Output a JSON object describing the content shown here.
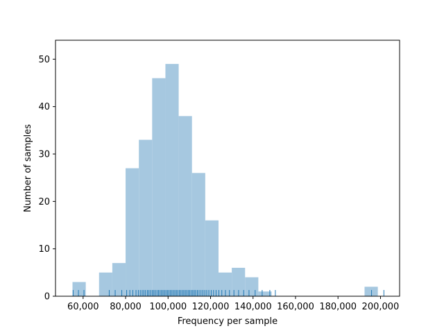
{
  "chart_data": {
    "type": "bar",
    "title": "",
    "xlabel": "Frequency per sample",
    "ylabel": "Number of samples",
    "xlim": [
      47000,
      209000
    ],
    "ylim": [
      0,
      54
    ],
    "xticks": [
      60000,
      80000,
      100000,
      120000,
      140000,
      160000,
      180000,
      200000
    ],
    "xtick_labels": [
      "60,000",
      "80,000",
      "100,000",
      "120,000",
      "140,000",
      "160,000",
      "180,000",
      "200,000"
    ],
    "yticks": [
      0,
      10,
      20,
      30,
      40,
      50
    ],
    "ytick_labels": [
      "0",
      "10",
      "20",
      "30",
      "40",
      "50"
    ],
    "grid": false,
    "legend": "none",
    "bin_width": 6250,
    "bins": [
      {
        "x0": 55000,
        "count": 3
      },
      {
        "x0": 61250,
        "count": 0
      },
      {
        "x0": 67500,
        "count": 5
      },
      {
        "x0": 73750,
        "count": 7
      },
      {
        "x0": 80000,
        "count": 27
      },
      {
        "x0": 86250,
        "count": 33
      },
      {
        "x0": 92500,
        "count": 46
      },
      {
        "x0": 98750,
        "count": 49
      },
      {
        "x0": 105000,
        "count": 38
      },
      {
        "x0": 111250,
        "count": 26
      },
      {
        "x0": 117500,
        "count": 16
      },
      {
        "x0": 123750,
        "count": 5
      },
      {
        "x0": 130000,
        "count": 6
      },
      {
        "x0": 136250,
        "count": 4
      },
      {
        "x0": 142500,
        "count": 1
      },
      {
        "x0": 148750,
        "count": 0
      },
      {
        "x0": 155000,
        "count": 0
      },
      {
        "x0": 161250,
        "count": 0
      },
      {
        "x0": 167500,
        "count": 0
      },
      {
        "x0": 173750,
        "count": 0
      },
      {
        "x0": 180000,
        "count": 0
      },
      {
        "x0": 186250,
        "count": 0
      },
      {
        "x0": 192500,
        "count": 2
      }
    ],
    "rug_values": [
      55300,
      57800,
      60400,
      72300,
      75100,
      78200,
      80500,
      82000,
      83400,
      84900,
      86000,
      86900,
      87800,
      88600,
      89400,
      90300,
      91000,
      91800,
      92600,
      93300,
      94000,
      94800,
      95500,
      96200,
      96900,
      97600,
      98300,
      99000,
      99700,
      100400,
      101100,
      101800,
      102500,
      103200,
      103900,
      104600,
      105300,
      106000,
      106700,
      107400,
      108100,
      108800,
      109500,
      110200,
      110900,
      111600,
      112300,
      113000,
      113800,
      114600,
      115500,
      116400,
      117300,
      118200,
      119200,
      120300,
      121400,
      122600,
      123900,
      125300,
      127000,
      128900,
      131000,
      133200,
      135600,
      138100,
      141000,
      144300,
      147900,
      150500,
      195800,
      201600
    ],
    "colors": {
      "bar_fill": "#a6c8e0",
      "rug": "#1f77b4",
      "axes": "#000000"
    }
  }
}
